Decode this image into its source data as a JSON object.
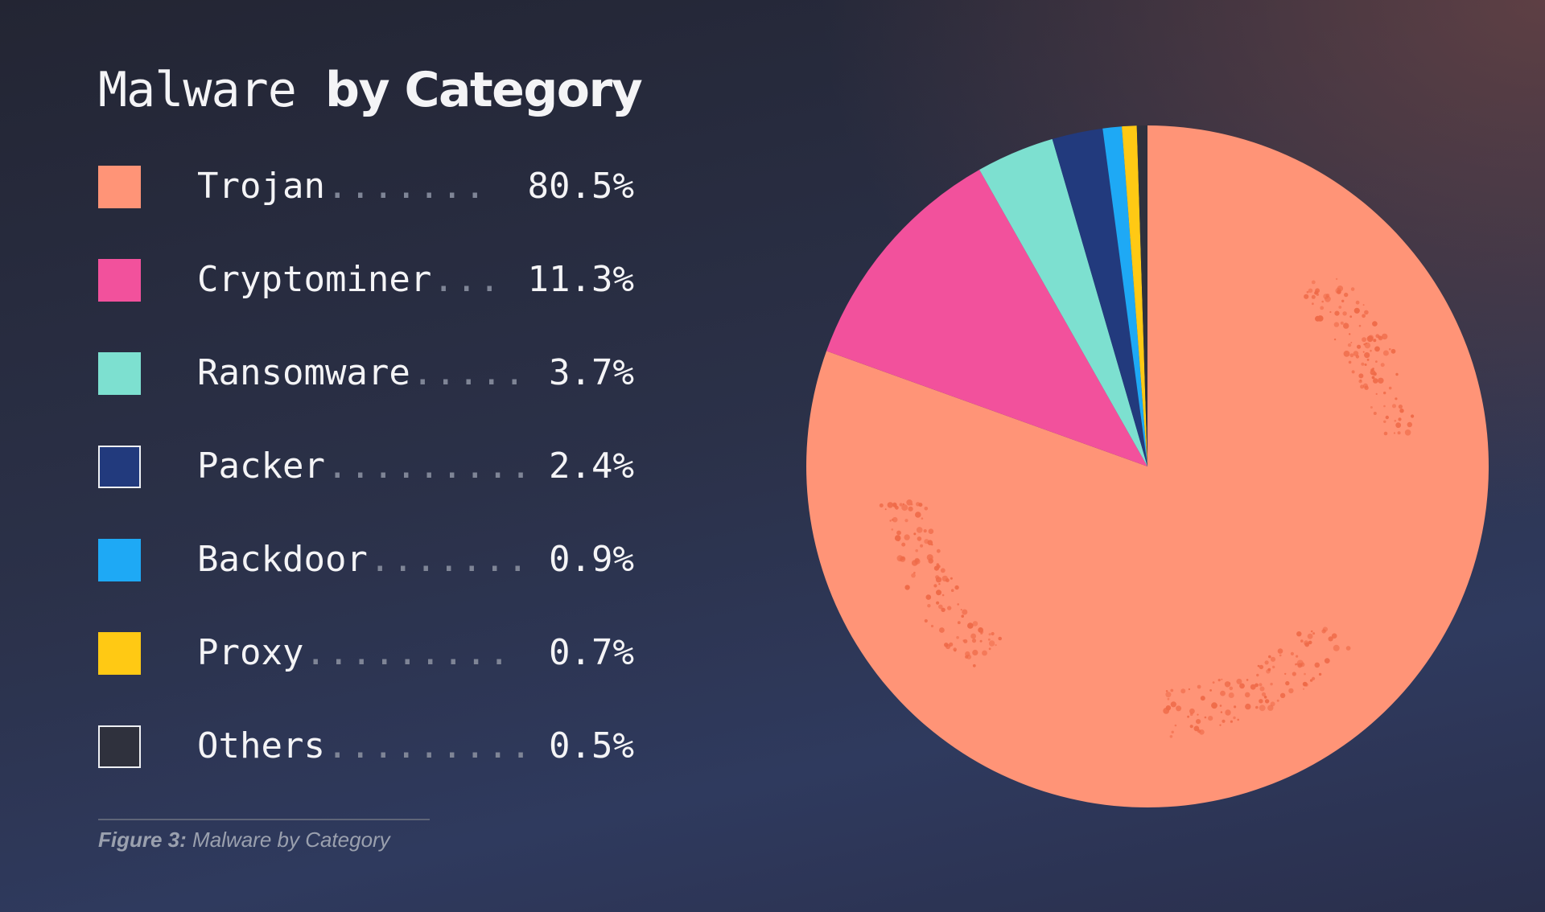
{
  "figure": {
    "title_light": "Malware",
    "title_bold": "by Category",
    "caption_label": "Figure 3:",
    "caption_text": "Malware by Category"
  },
  "chart_data": {
    "type": "pie",
    "title": "Malware by Category",
    "start": "top, clockwise",
    "slices": [
      {
        "label": "Trojan",
        "value": 80.5,
        "value_label": "80.5%",
        "dots": ".......",
        "color": "#ff9477",
        "bordered": false,
        "texture": true
      },
      {
        "label": "Cryptominer",
        "value": 11.3,
        "value_label": "11.3%",
        "dots": "...",
        "color": "#f2519c",
        "bordered": false,
        "texture": false
      },
      {
        "label": "Ransomware",
        "value": 3.7,
        "value_label": "3.7%",
        "dots": ".....",
        "color": "#7de0d0",
        "bordered": false,
        "texture": false
      },
      {
        "label": "Packer",
        "value": 2.4,
        "value_label": "2.4%",
        "dots": ".........",
        "color": "#223a7d",
        "bordered": true,
        "texture": false
      },
      {
        "label": "Backdoor",
        "value": 0.9,
        "value_label": "0.9%",
        "dots": ".......",
        "color": "#1ea9f5",
        "bordered": false,
        "texture": false
      },
      {
        "label": "Proxy",
        "value": 0.7,
        "value_label": "0.7%",
        "dots": ".........",
        "color": "#ffc914",
        "bordered": false,
        "texture": false
      },
      {
        "label": "Others",
        "value": 0.5,
        "value_label": "0.5%",
        "dots": ".........",
        "color": "#2f313d",
        "bordered": true,
        "texture": false
      }
    ]
  }
}
